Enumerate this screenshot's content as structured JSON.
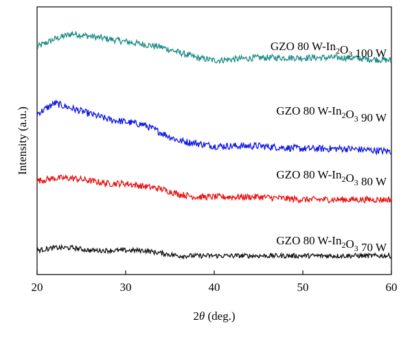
{
  "chart_data": {
    "type": "line",
    "xlabel": "2θ (deg.)",
    "ylabel": "Intensity (a.u.)",
    "xlim": [
      20,
      60
    ],
    "x_ticks": [
      "20",
      "30",
      "40",
      "50",
      "60"
    ],
    "y_ticks": [],
    "grid": false,
    "legend": "inline labels at right above each trace",
    "series": [
      {
        "name": "GZO 80 W-In2O3 100 W",
        "label_main": "GZO 80 W-In",
        "label_sub1": "2",
        "label_mid": "O",
        "label_sub2": "3",
        "label_tail": " 100 W",
        "color": "#1a8a84",
        "points": [
          [
            20,
            0.85
          ],
          [
            22,
            0.88
          ],
          [
            24,
            0.9
          ],
          [
            26,
            0.89
          ],
          [
            28,
            0.88
          ],
          [
            30,
            0.87
          ],
          [
            32,
            0.86
          ],
          [
            34,
            0.85
          ],
          [
            36,
            0.83
          ],
          [
            38,
            0.81
          ],
          [
            40,
            0.8
          ],
          [
            45,
            0.81
          ],
          [
            50,
            0.81
          ],
          [
            55,
            0.81
          ],
          [
            60,
            0.8
          ]
        ],
        "noise": 0.012
      },
      {
        "name": "GZO 80 W-In2O3 90 W",
        "label_main": "GZO 80 W-In",
        "label_sub1": "2",
        "label_mid": "O",
        "label_sub2": "3",
        "label_tail": " 90 W",
        "color": "#0a12e6",
        "points": [
          [
            20,
            0.6
          ],
          [
            22,
            0.64
          ],
          [
            24,
            0.62
          ],
          [
            26,
            0.6
          ],
          [
            28,
            0.58
          ],
          [
            30,
            0.57
          ],
          [
            32,
            0.56
          ],
          [
            34,
            0.53
          ],
          [
            36,
            0.5
          ],
          [
            38,
            0.49
          ],
          [
            40,
            0.48
          ],
          [
            45,
            0.48
          ],
          [
            50,
            0.47
          ],
          [
            55,
            0.47
          ],
          [
            60,
            0.46
          ]
        ],
        "noise": 0.013
      },
      {
        "name": "GZO 80 W-In2O3 80 W",
        "label_main": "GZO 80 W-In",
        "label_sub1": "2",
        "label_mid": "O",
        "label_sub2": "3",
        "label_tail": " 80 W",
        "color": "#e81010",
        "points": [
          [
            20,
            0.35
          ],
          [
            22,
            0.36
          ],
          [
            24,
            0.36
          ],
          [
            26,
            0.35
          ],
          [
            28,
            0.34
          ],
          [
            30,
            0.34
          ],
          [
            32,
            0.33
          ],
          [
            34,
            0.32
          ],
          [
            36,
            0.3
          ],
          [
            38,
            0.29
          ],
          [
            40,
            0.29
          ],
          [
            45,
            0.29
          ],
          [
            50,
            0.28
          ],
          [
            55,
            0.28
          ],
          [
            60,
            0.28
          ]
        ],
        "noise": 0.012
      },
      {
        "name": "GZO 80 W-In2O3 70 W",
        "label_main": "GZO 80 W-In",
        "label_sub1": "2",
        "label_mid": "O",
        "label_sub2": "3",
        "label_tail": " 70 W",
        "color": "#111111",
        "points": [
          [
            20,
            0.09
          ],
          [
            22,
            0.1
          ],
          [
            24,
            0.1
          ],
          [
            26,
            0.09
          ],
          [
            28,
            0.09
          ],
          [
            30,
            0.09
          ],
          [
            32,
            0.09
          ],
          [
            34,
            0.08
          ],
          [
            36,
            0.07
          ],
          [
            38,
            0.07
          ],
          [
            40,
            0.07
          ],
          [
            45,
            0.07
          ],
          [
            50,
            0.07
          ],
          [
            55,
            0.07
          ],
          [
            60,
            0.07
          ]
        ],
        "noise": 0.009
      }
    ]
  }
}
